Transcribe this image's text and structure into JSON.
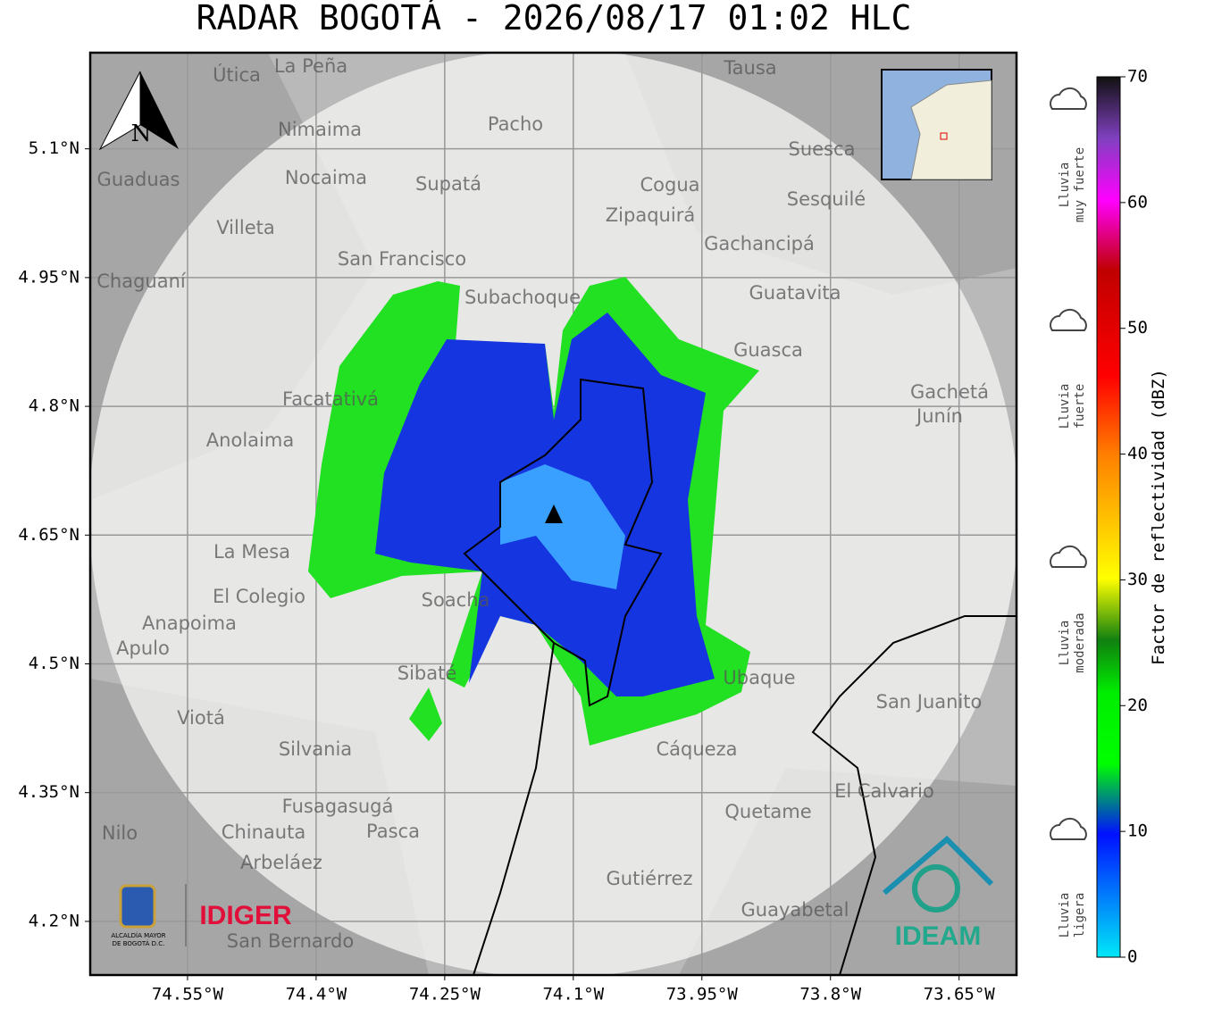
{
  "title": "RADAR BOGOTÁ - 2026/08/17 01:02 HLC",
  "map": {
    "xlim": [
      -74.6635,
      -73.583
    ],
    "ylim": [
      4.1375,
      5.212
    ],
    "xticks": [
      {
        "value": -74.55,
        "label": "74.55°W"
      },
      {
        "value": -74.4,
        "label": "74.4°W"
      },
      {
        "value": -74.25,
        "label": "74.25°W"
      },
      {
        "value": -74.1,
        "label": "74.1°W"
      },
      {
        "value": -73.95,
        "label": "73.95°W"
      },
      {
        "value": -73.8,
        "label": "73.8°W"
      },
      {
        "value": -73.65,
        "label": "73.65°W"
      }
    ],
    "yticks": [
      {
        "value": 4.2,
        "label": "4.2°N"
      },
      {
        "value": 4.35,
        "label": "4.35°N"
      },
      {
        "value": 4.5,
        "label": "4.5°N"
      },
      {
        "value": 4.65,
        "label": "4.65°N"
      },
      {
        "value": 4.8,
        "label": "4.8°N"
      },
      {
        "value": 4.95,
        "label": "4.95°N"
      },
      {
        "value": 5.1,
        "label": "5.1°N"
      }
    ],
    "places": [
      "La Peña",
      "Útica",
      "Tausa",
      "Pacho",
      "Nimaima",
      "Nocaima",
      "Supatá",
      "Guaduas",
      "Cogua",
      "Zipaquirá",
      "Suesca",
      "Sesquilé",
      "Villeta",
      "San Francisco",
      "Gachancipá",
      "Chaguaní",
      "Guatavita",
      "Subachoque",
      "Guasca",
      "Facatativá",
      "Gachetá",
      "Junín",
      "Anolaima",
      "La Mesa",
      "El Colegio",
      "Soacha",
      "Anapoima",
      "Apulo",
      "Sibaté",
      "Ubaque",
      "San Juanito",
      "Viotá",
      "Silvania",
      "Cáqueza",
      "El Calvario",
      "Fusagasugá",
      "Quetame",
      "Nilo",
      "Chinauta",
      "Pasca",
      "Arbeláez",
      "Gutiérrez",
      "Guayabetal",
      "San Bernardo"
    ],
    "compass": "N"
  },
  "colorbar": {
    "label": "Factor de reflectividad (dBZ)",
    "range": [
      0,
      70
    ],
    "ticks": [
      0,
      10,
      20,
      30,
      40,
      50,
      60,
      70
    ]
  },
  "rain_legend": [
    [
      "Lluvia",
      "muy fuerte"
    ],
    [
      "Lluvia",
      "fuerte"
    ],
    [
      "Lluvia",
      "moderada"
    ],
    [
      "Lluvia",
      "ligera"
    ]
  ],
  "logos": {
    "alcaldia": [
      "ALCALDÍA MAYOR",
      "DE BOGOTÁ D.C."
    ],
    "idiger": "IDIGER",
    "ideam": "IDEAM"
  }
}
